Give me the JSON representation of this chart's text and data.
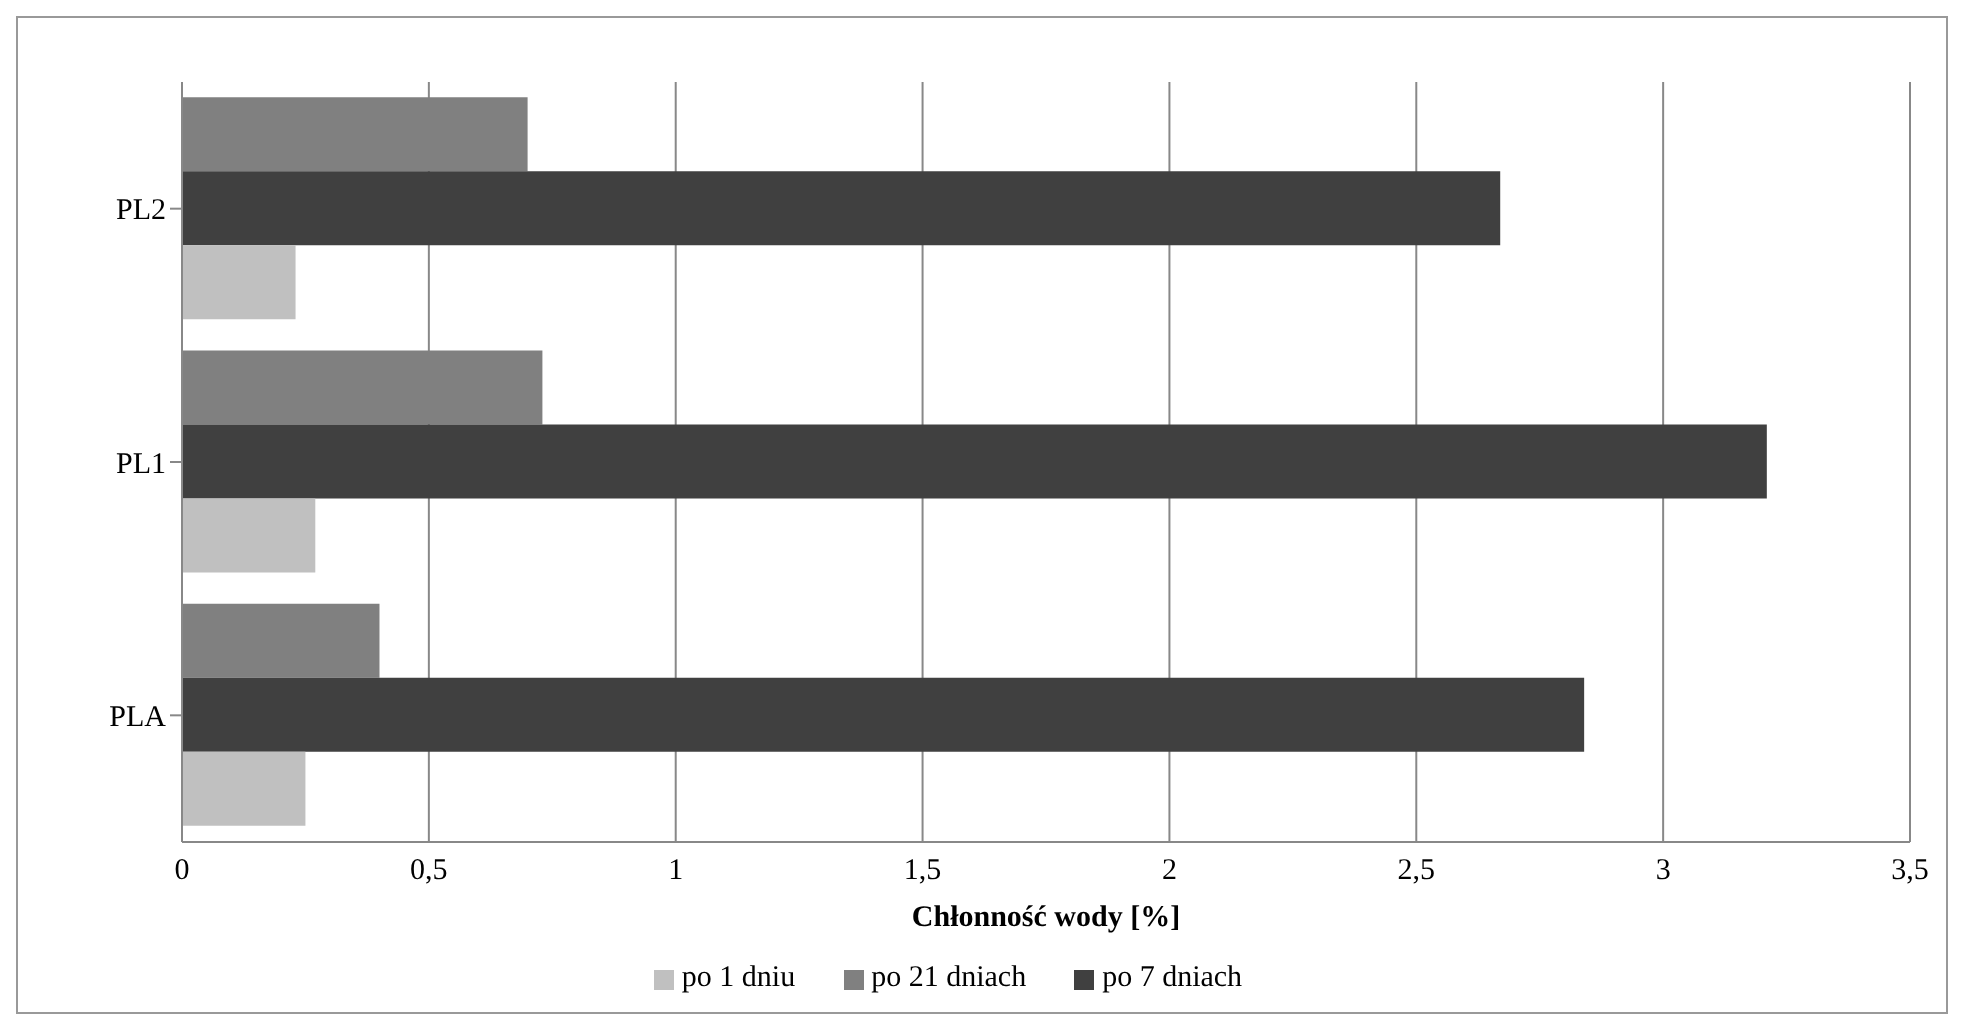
{
  "chart_data": {
    "type": "bar",
    "orientation": "horizontal",
    "xlabel": "Chłonność wody [%]",
    "categories": [
      "PL2",
      "PL1",
      "PLA"
    ],
    "series": [
      {
        "name": "po 21 dniach",
        "color": "#808080",
        "values": [
          0.7,
          0.73,
          0.4
        ]
      },
      {
        "name": "po 7 dniach",
        "color": "#404040",
        "values": [
          2.67,
          3.21,
          2.84
        ]
      },
      {
        "name": "po 1 dniu",
        "color": "#c0c0c0",
        "values": [
          0.23,
          0.27,
          0.25
        ]
      }
    ],
    "xlim": [
      0,
      3.5
    ],
    "xticks": [
      0,
      {
        "value": 0.5,
        "label": "0,5"
      },
      1,
      {
        "value": 1.5,
        "label": "1,5"
      },
      2,
      {
        "value": 2.5,
        "label": "2,5"
      },
      3,
      {
        "value": 3.5,
        "label": "3,5"
      }
    ],
    "grid": "x",
    "legend": "bottom"
  }
}
